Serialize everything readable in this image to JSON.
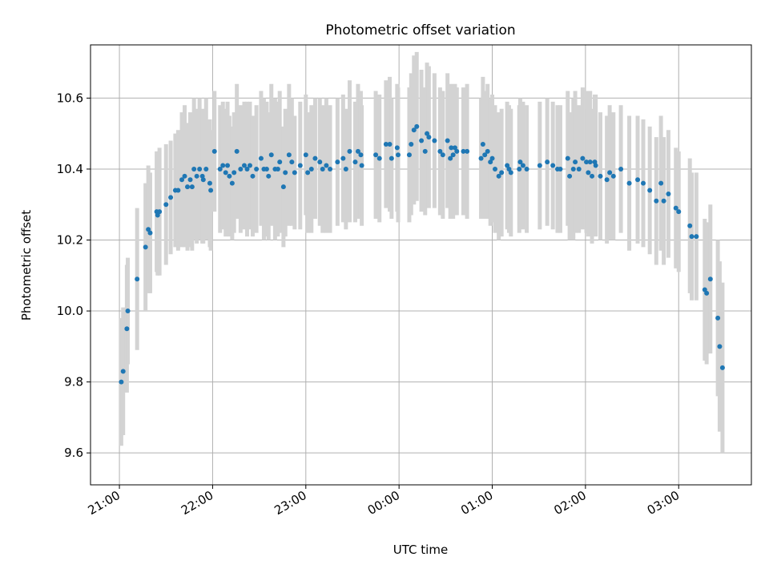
{
  "chart_data": {
    "type": "scatter",
    "title": "Photometric offset variation",
    "xlabel": "UTC time",
    "ylabel": "Photometric offset",
    "x_unit": "UTC hours (continuous across midnight)",
    "xlim": [
      20.69,
      27.78
    ],
    "ylim": [
      9.51,
      10.75
    ],
    "x_ticks": [
      {
        "value": 21,
        "label": "21:00"
      },
      {
        "value": 22,
        "label": "22:00"
      },
      {
        "value": 23,
        "label": "23:00"
      },
      {
        "value": 24,
        "label": "00:00"
      },
      {
        "value": 25,
        "label": "01:00"
      },
      {
        "value": 26,
        "label": "02:00"
      },
      {
        "value": 27,
        "label": "03:00"
      }
    ],
    "y_ticks": [
      {
        "value": 9.6,
        "label": "9.6"
      },
      {
        "value": 9.8,
        "label": "9.8"
      },
      {
        "value": 10.0,
        "label": "10.0"
      },
      {
        "value": 10.2,
        "label": "10.2"
      },
      {
        "value": 10.4,
        "label": "10.4"
      },
      {
        "value": 10.6,
        "label": "10.6"
      }
    ],
    "grid": true,
    "colors": {
      "marker": "#1f77b4",
      "errorbar": "#d3d3d3",
      "grid": "#b0b0b0"
    },
    "series": [
      {
        "points": [
          [
            21.02,
            9.8,
            0.18
          ],
          [
            21.04,
            9.83,
            0.18
          ],
          [
            21.08,
            9.95,
            0.18
          ],
          [
            21.09,
            10.0,
            0.15
          ],
          [
            21.19,
            10.09,
            0.2
          ],
          [
            21.28,
            10.18,
            0.18
          ],
          [
            21.31,
            10.23,
            0.18
          ],
          [
            21.33,
            10.22,
            0.17
          ],
          [
            21.4,
            10.28,
            0.17
          ],
          [
            21.41,
            10.27,
            0.17
          ],
          [
            21.43,
            10.28,
            0.18
          ],
          [
            21.5,
            10.3,
            0.17
          ],
          [
            21.55,
            10.32,
            0.16
          ],
          [
            21.6,
            10.34,
            0.16
          ],
          [
            21.63,
            10.34,
            0.17
          ],
          [
            21.67,
            10.37,
            0.19
          ],
          [
            21.7,
            10.38,
            0.2
          ],
          [
            21.73,
            10.35,
            0.18
          ],
          [
            21.76,
            10.37,
            0.19
          ],
          [
            21.78,
            10.35,
            0.18
          ],
          [
            21.8,
            10.4,
            0.2
          ],
          [
            21.83,
            10.38,
            0.19
          ],
          [
            21.86,
            10.4,
            0.2
          ],
          [
            21.89,
            10.38,
            0.19
          ],
          [
            21.9,
            10.37,
            0.18
          ],
          [
            21.93,
            10.4,
            0.2
          ],
          [
            21.97,
            10.36,
            0.18
          ],
          [
            21.98,
            10.34,
            0.17
          ],
          [
            22.02,
            10.45,
            0.17
          ],
          [
            22.08,
            10.4,
            0.18
          ],
          [
            22.11,
            10.41,
            0.18
          ],
          [
            22.14,
            10.39,
            0.18
          ],
          [
            22.16,
            10.41,
            0.18
          ],
          [
            22.18,
            10.38,
            0.17
          ],
          [
            22.21,
            10.36,
            0.16
          ],
          [
            22.23,
            10.39,
            0.17
          ],
          [
            22.26,
            10.45,
            0.19
          ],
          [
            22.3,
            10.4,
            0.18
          ],
          [
            22.34,
            10.41,
            0.18
          ],
          [
            22.37,
            10.4,
            0.19
          ],
          [
            22.4,
            10.41,
            0.18
          ],
          [
            22.43,
            10.38,
            0.17
          ],
          [
            22.47,
            10.4,
            0.18
          ],
          [
            22.52,
            10.43,
            0.19
          ],
          [
            22.55,
            10.4,
            0.2
          ],
          [
            22.58,
            10.4,
            0.19
          ],
          [
            22.6,
            10.38,
            0.18
          ],
          [
            22.63,
            10.44,
            0.2
          ],
          [
            22.67,
            10.4,
            0.2
          ],
          [
            22.7,
            10.4,
            0.19
          ],
          [
            22.72,
            10.42,
            0.2
          ],
          [
            22.76,
            10.35,
            0.17
          ],
          [
            22.78,
            10.39,
            0.18
          ],
          [
            22.82,
            10.44,
            0.2
          ],
          [
            22.85,
            10.42,
            0.18
          ],
          [
            22.88,
            10.39,
            0.16
          ],
          [
            22.94,
            10.41,
            0.18
          ],
          [
            23.0,
            10.44,
            0.17
          ],
          [
            23.02,
            10.39,
            0.17
          ],
          [
            23.06,
            10.4,
            0.18
          ],
          [
            23.1,
            10.43,
            0.17
          ],
          [
            23.15,
            10.42,
            0.18
          ],
          [
            23.18,
            10.4,
            0.18
          ],
          [
            23.22,
            10.41,
            0.19
          ],
          [
            23.26,
            10.4,
            0.18
          ],
          [
            23.34,
            10.42,
            0.18
          ],
          [
            23.4,
            10.43,
            0.18
          ],
          [
            23.43,
            10.4,
            0.17
          ],
          [
            23.47,
            10.45,
            0.2
          ],
          [
            23.53,
            10.42,
            0.17
          ],
          [
            23.56,
            10.45,
            0.19
          ],
          [
            23.59,
            10.44,
            0.18
          ],
          [
            23.6,
            10.41,
            0.17
          ],
          [
            23.75,
            10.44,
            0.18
          ],
          [
            23.79,
            10.43,
            0.18
          ],
          [
            23.86,
            10.47,
            0.18
          ],
          [
            23.9,
            10.47,
            0.19
          ],
          [
            23.92,
            10.43,
            0.17
          ],
          [
            23.98,
            10.46,
            0.18
          ],
          [
            23.99,
            10.44,
            0.19
          ],
          [
            24.11,
            10.44,
            0.19
          ],
          [
            24.13,
            10.47,
            0.2
          ],
          [
            24.16,
            10.51,
            0.21
          ],
          [
            24.19,
            10.52,
            0.21
          ],
          [
            24.24,
            10.48,
            0.2
          ],
          [
            24.28,
            10.45,
            0.18
          ],
          [
            24.3,
            10.5,
            0.2
          ],
          [
            24.32,
            10.49,
            0.2
          ],
          [
            24.38,
            10.48,
            0.19
          ],
          [
            24.44,
            10.45,
            0.18
          ],
          [
            24.47,
            10.44,
            0.18
          ],
          [
            24.52,
            10.48,
            0.19
          ],
          [
            24.55,
            10.43,
            0.17
          ],
          [
            24.56,
            10.46,
            0.18
          ],
          [
            24.58,
            10.44,
            0.18
          ],
          [
            24.6,
            10.46,
            0.18
          ],
          [
            24.62,
            10.45,
            0.18
          ],
          [
            24.69,
            10.45,
            0.18
          ],
          [
            24.73,
            10.45,
            0.19
          ],
          [
            24.88,
            10.43,
            0.17
          ],
          [
            24.9,
            10.47,
            0.19
          ],
          [
            24.92,
            10.44,
            0.18
          ],
          [
            24.95,
            10.45,
            0.19
          ],
          [
            24.98,
            10.42,
            0.18
          ],
          [
            25.0,
            10.43,
            0.18
          ],
          [
            25.03,
            10.4,
            0.18
          ],
          [
            25.07,
            10.38,
            0.18
          ],
          [
            25.1,
            10.39,
            0.18
          ],
          [
            25.16,
            10.41,
            0.18
          ],
          [
            25.18,
            10.4,
            0.18
          ],
          [
            25.2,
            10.39,
            0.18
          ],
          [
            25.29,
            10.4,
            0.18
          ],
          [
            25.3,
            10.42,
            0.18
          ],
          [
            25.33,
            10.41,
            0.18
          ],
          [
            25.37,
            10.4,
            0.18
          ],
          [
            25.51,
            10.41,
            0.18
          ],
          [
            25.59,
            10.42,
            0.18
          ],
          [
            25.65,
            10.41,
            0.18
          ],
          [
            25.7,
            10.4,
            0.18
          ],
          [
            25.73,
            10.4,
            0.18
          ],
          [
            25.81,
            10.43,
            0.19
          ],
          [
            25.83,
            10.38,
            0.18
          ],
          [
            25.87,
            10.4,
            0.2
          ],
          [
            25.89,
            10.42,
            0.2
          ],
          [
            25.93,
            10.4,
            0.18
          ],
          [
            25.97,
            10.43,
            0.2
          ],
          [
            26.01,
            10.42,
            0.2
          ],
          [
            26.03,
            10.39,
            0.18
          ],
          [
            26.05,
            10.42,
            0.2
          ],
          [
            26.07,
            10.38,
            0.19
          ],
          [
            26.1,
            10.42,
            0.19
          ],
          [
            26.11,
            10.41,
            0.2
          ],
          [
            26.16,
            10.38,
            0.18
          ],
          [
            26.23,
            10.37,
            0.18
          ],
          [
            26.26,
            10.39,
            0.19
          ],
          [
            26.3,
            10.38,
            0.18
          ],
          [
            26.38,
            10.4,
            0.18
          ],
          [
            26.47,
            10.36,
            0.19
          ],
          [
            26.56,
            10.37,
            0.18
          ],
          [
            26.62,
            10.36,
            0.18
          ],
          [
            26.69,
            10.34,
            0.18
          ],
          [
            26.76,
            10.31,
            0.18
          ],
          [
            26.81,
            10.36,
            0.19
          ],
          [
            26.84,
            10.31,
            0.18
          ],
          [
            26.89,
            10.33,
            0.18
          ],
          [
            26.97,
            10.29,
            0.17
          ],
          [
            27.0,
            10.28,
            0.17
          ],
          [
            27.12,
            10.24,
            0.19
          ],
          [
            27.14,
            10.21,
            0.18
          ],
          [
            27.19,
            10.21,
            0.18
          ],
          [
            27.28,
            10.06,
            0.2
          ],
          [
            27.3,
            10.05,
            0.2
          ],
          [
            27.34,
            10.09,
            0.21
          ],
          [
            27.42,
            9.98,
            0.22
          ],
          [
            27.44,
            9.9,
            0.24
          ],
          [
            27.47,
            9.84,
            0.24
          ]
        ]
      }
    ]
  }
}
